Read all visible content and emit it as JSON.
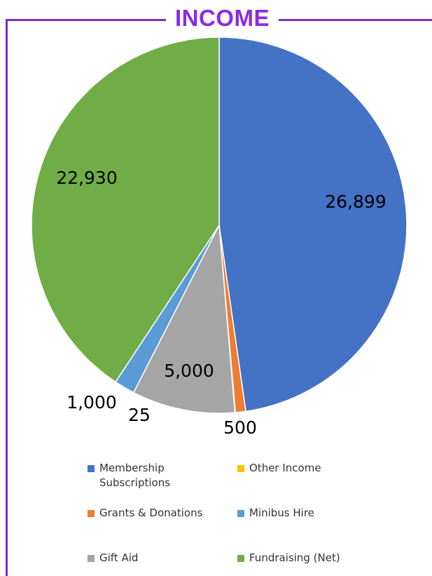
{
  "header": {
    "title": "INCOME"
  },
  "chart_data": {
    "type": "pie",
    "title": "INCOME",
    "categories": [
      "Membership Subscriptions",
      "Other Income",
      "Grants & Donations",
      "Minibus Hire",
      "Gift Aid",
      "Fundraising (Net)"
    ],
    "values": [
      26899,
      25,
      500,
      1000,
      5000,
      22930
    ],
    "data_labels": [
      "26,899",
      "25",
      "500",
      "1,000",
      "5,000",
      "22,930"
    ],
    "colors": [
      "#4472c4",
      "#ffc000",
      "#ed7d31",
      "#5b9bd5",
      "#a5a5a5",
      "#70ad47"
    ],
    "slice_order": [
      0,
      2,
      1,
      4,
      3,
      5
    ],
    "legend_position": "bottom",
    "legend": [
      {
        "label": "Membership\nSubscriptions",
        "color": "#4472c4"
      },
      {
        "label": "Other Income",
        "color": "#ffc000"
      },
      {
        "label": "Grants & Donations",
        "color": "#ed7d31"
      },
      {
        "label": "Minibus Hire",
        "color": "#5b9bd5"
      },
      {
        "label": "Gift Aid",
        "color": "#a5a5a5"
      },
      {
        "label": "Fundraising (Net)",
        "color": "#70ad47"
      }
    ]
  }
}
